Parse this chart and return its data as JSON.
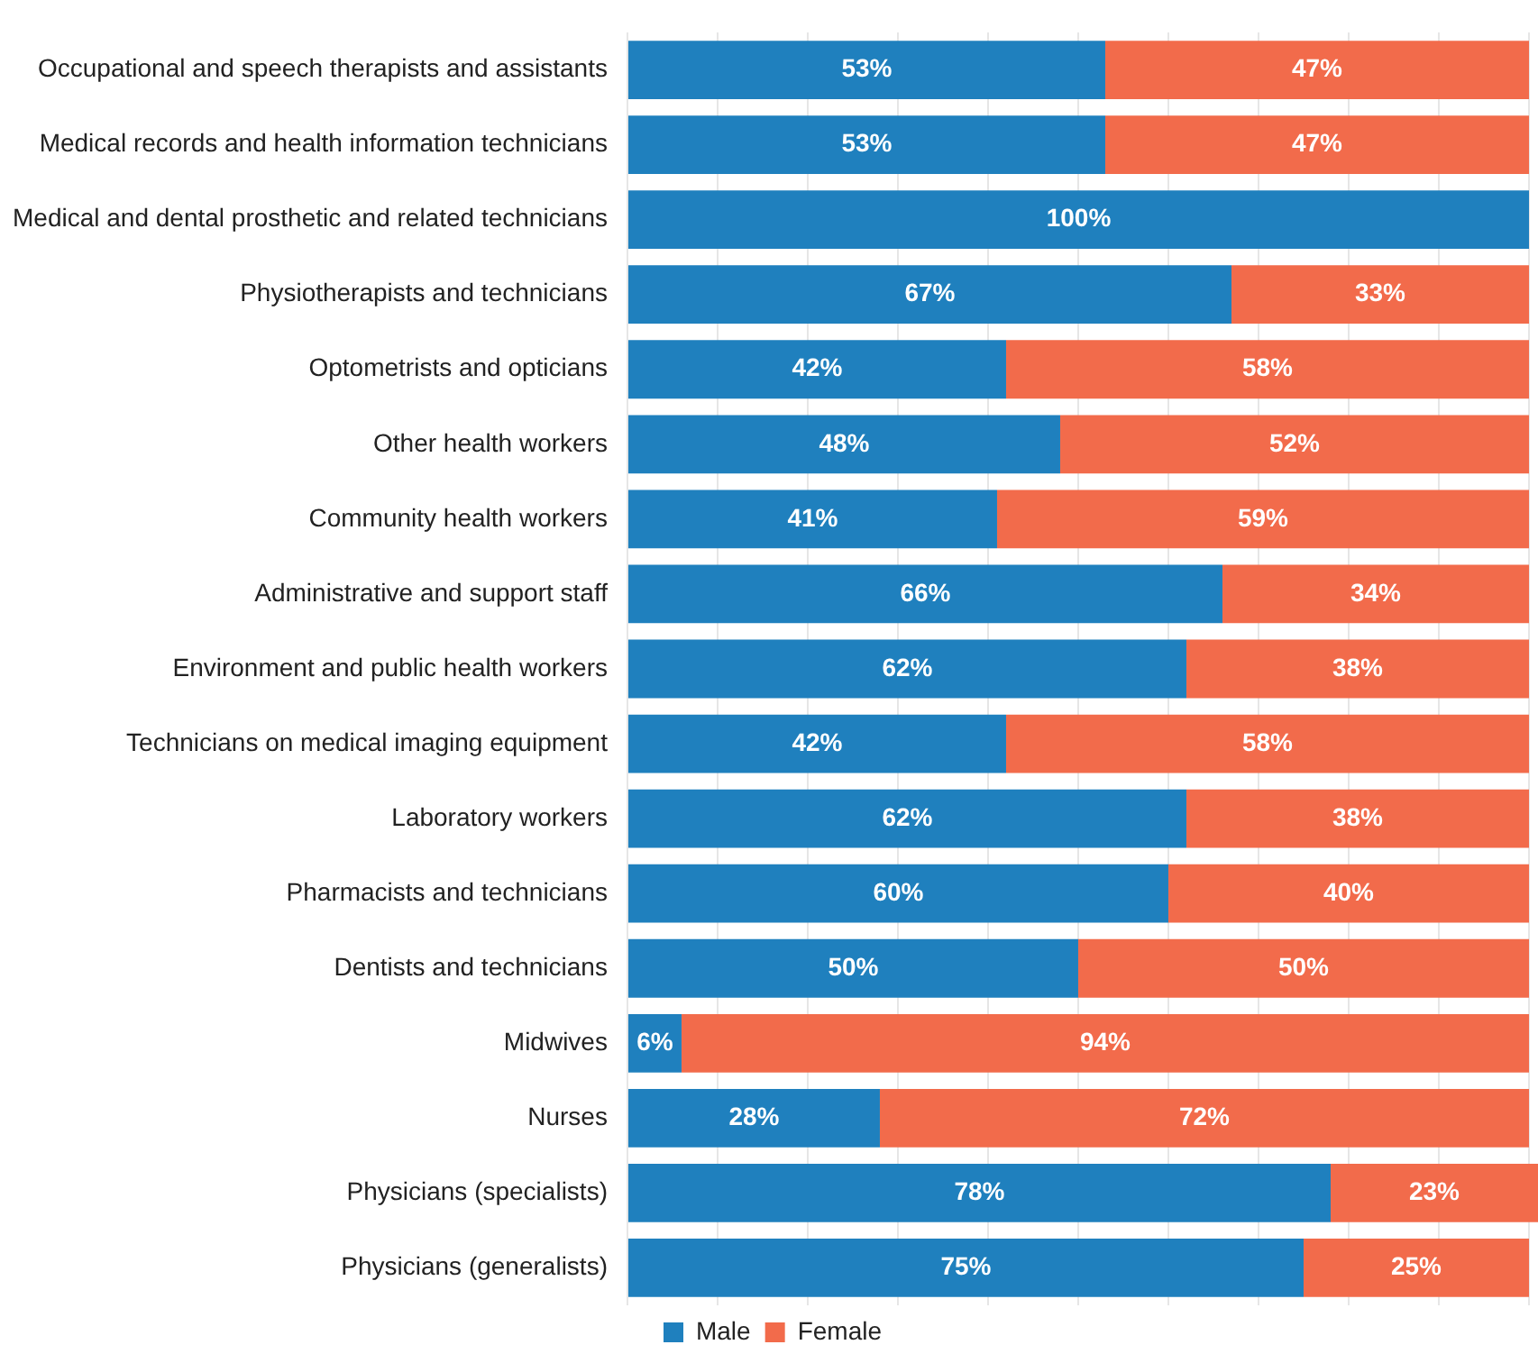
{
  "chart_data": {
    "type": "bar",
    "orientation": "horizontal",
    "stacked": true,
    "categories": [
      "Occupational and speech therapists and assistants",
      "Medical records and health information technicians",
      "Medical and dental prosthetic and related technicians",
      "Physiotherapists and technicians",
      "Optometrists and opticians",
      "Other health workers",
      "Community health workers",
      "Administrative and support staff",
      "Environment and public health workers",
      "Technicians on medical imaging equipment",
      "Laboratory workers",
      "Pharmacists and technicians",
      "Dentists and technicians",
      "Midwives",
      "Nurses",
      "Physicians (specialists)",
      "Physicians (generalists)"
    ],
    "series": [
      {
        "name": "Male",
        "color": "#1f80be",
        "values": [
          53,
          53,
          100,
          67,
          42,
          48,
          41,
          66,
          62,
          42,
          62,
          60,
          50,
          6,
          28,
          78,
          75
        ],
        "value_labels": [
          "53%",
          "53%",
          "100%",
          "67%",
          "42%",
          "48%",
          "41%",
          "66%",
          "62%",
          "42%",
          "62%",
          "60%",
          "50%",
          "6%",
          "28%",
          "78%",
          "75%"
        ]
      },
      {
        "name": "Female",
        "color": "#f26b4b",
        "values": [
          47,
          47,
          null,
          33,
          58,
          52,
          59,
          34,
          38,
          58,
          38,
          40,
          50,
          94,
          72,
          23,
          25
        ],
        "value_labels": [
          "47%",
          "47%",
          null,
          "33%",
          "58%",
          "52%",
          "59%",
          "34%",
          "38%",
          "58%",
          "38%",
          "40%",
          "50%",
          "94%",
          "72%",
          "23%",
          "25%"
        ]
      }
    ],
    "xlim": [
      0,
      101
    ],
    "xticks": [
      {
        "value": 0,
        "label": null
      },
      {
        "value": 10,
        "label": null
      },
      {
        "value": 20,
        "label": null
      },
      {
        "value": 30,
        "label": null
      },
      {
        "value": 40,
        "label": null
      },
      {
        "value": 50,
        "label": null
      },
      {
        "value": 60,
        "label": null
      },
      {
        "value": 70,
        "label": null
      },
      {
        "value": 80,
        "label": null
      },
      {
        "value": 90,
        "label": null
      },
      {
        "value": 100,
        "label": null
      }
    ],
    "tick_labels": "y",
    "grid": "x",
    "legend": "bottom"
  }
}
